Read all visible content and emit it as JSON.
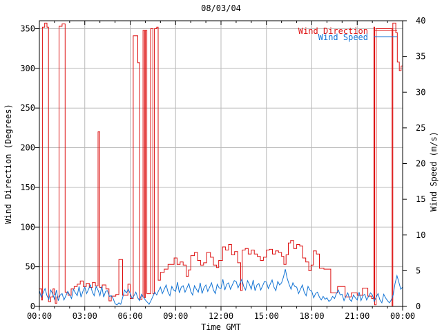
{
  "chart_data": {
    "type": "line",
    "title": "08/03/04",
    "xlabel": "Time GMT",
    "x_range_hours": [
      0,
      24
    ],
    "x_major_step_hours": 3,
    "x_minor_step_hours": 1,
    "x_tick_labels": [
      "00:00",
      "03:00",
      "06:00",
      "09:00",
      "12:00",
      "15:00",
      "18:00",
      "21:00",
      "00:00"
    ],
    "grid": true,
    "grid_color": "#b9b9b9",
    "border_color": "#000000",
    "left_axis": {
      "label": "Wind Direction (Degrees)",
      "range": [
        0,
        360
      ],
      "ticks": [
        0,
        50,
        100,
        150,
        200,
        250,
        300,
        350
      ]
    },
    "right_axis": {
      "label": "Wind Speed (m/s)",
      "range": [
        0,
        40
      ],
      "ticks": [
        0,
        5,
        10,
        15,
        20,
        25,
        30,
        35,
        40
      ]
    },
    "legend": {
      "position": "top-right-inside",
      "entries": [
        {
          "label": "Wind Direction",
          "color": "#dd0f0f",
          "axis": "left"
        },
        {
          "label": "Wind Speed",
          "color": "#1173d4",
          "axis": "right"
        }
      ]
    },
    "series": [
      {
        "name": "Wind Direction",
        "axis": "left",
        "units": "degrees",
        "style": "steps",
        "color": "#dd0f0f",
        "points": [
          [
            0,
            22
          ],
          [
            0.15,
            8
          ],
          [
            0.2,
            352
          ],
          [
            0.35,
            357
          ],
          [
            0.5,
            352
          ],
          [
            0.6,
            6
          ],
          [
            0.75,
            12
          ],
          [
            0.9,
            22
          ],
          [
            1.0,
            15
          ],
          [
            1.05,
            4
          ],
          [
            1.15,
            12
          ],
          [
            1.3,
            353
          ],
          [
            1.5,
            356
          ],
          [
            1.7,
            18
          ],
          [
            1.9,
            14
          ],
          [
            2.1,
            22
          ],
          [
            2.3,
            25
          ],
          [
            2.5,
            28
          ],
          [
            2.7,
            32
          ],
          [
            2.9,
            25
          ],
          [
            3.1,
            29
          ],
          [
            3.3,
            24
          ],
          [
            3.5,
            30
          ],
          [
            3.7,
            26
          ],
          [
            3.88,
            220
          ],
          [
            3.99,
            24
          ],
          [
            4.15,
            27
          ],
          [
            4.4,
            22
          ],
          [
            4.6,
            7
          ],
          [
            4.75,
            13
          ],
          [
            5.05,
            15
          ],
          [
            5.25,
            59
          ],
          [
            5.5,
            14
          ],
          [
            5.7,
            14
          ],
          [
            5.85,
            28
          ],
          [
            6.0,
            10
          ],
          [
            6.2,
            341
          ],
          [
            6.5,
            307
          ],
          [
            6.62,
            9
          ],
          [
            6.78,
            13
          ],
          [
            6.85,
            348
          ],
          [
            6.95,
            11
          ],
          [
            7.0,
            348
          ],
          [
            7.1,
            16
          ],
          [
            7.35,
            350
          ],
          [
            7.5,
            16
          ],
          [
            7.6,
            350
          ],
          [
            7.75,
            352
          ],
          [
            7.85,
            33
          ],
          [
            8.0,
            43
          ],
          [
            8.25,
            47
          ],
          [
            8.5,
            53
          ],
          [
            8.9,
            61
          ],
          [
            9.1,
            53
          ],
          [
            9.3,
            56
          ],
          [
            9.5,
            52
          ],
          [
            9.7,
            38
          ],
          [
            9.85,
            46
          ],
          [
            10.0,
            64
          ],
          [
            10.25,
            68
          ],
          [
            10.45,
            58
          ],
          [
            10.65,
            52
          ],
          [
            10.85,
            55
          ],
          [
            11.05,
            68
          ],
          [
            11.3,
            62
          ],
          [
            11.5,
            52
          ],
          [
            11.7,
            49
          ],
          [
            11.85,
            58
          ],
          [
            12.1,
            75
          ],
          [
            12.3,
            71
          ],
          [
            12.5,
            78
          ],
          [
            12.7,
            65
          ],
          [
            12.9,
            69
          ],
          [
            13.1,
            55
          ],
          [
            13.3,
            20
          ],
          [
            13.4,
            71
          ],
          [
            13.6,
            73
          ],
          [
            13.8,
            66
          ],
          [
            14.0,
            71
          ],
          [
            14.2,
            66
          ],
          [
            14.4,
            63
          ],
          [
            14.6,
            58
          ],
          [
            14.8,
            62
          ],
          [
            15.0,
            71
          ],
          [
            15.2,
            72
          ],
          [
            15.4,
            66
          ],
          [
            15.6,
            70
          ],
          [
            15.8,
            68
          ],
          [
            16.0,
            63
          ],
          [
            16.15,
            53
          ],
          [
            16.3,
            65
          ],
          [
            16.45,
            80
          ],
          [
            16.6,
            83
          ],
          [
            16.8,
            73
          ],
          [
            17.0,
            78
          ],
          [
            17.2,
            76
          ],
          [
            17.4,
            61
          ],
          [
            17.6,
            56
          ],
          [
            17.8,
            45
          ],
          [
            17.95,
            52
          ],
          [
            18.1,
            70
          ],
          [
            18.3,
            66
          ],
          [
            18.5,
            48
          ],
          [
            18.8,
            47
          ],
          [
            19.25,
            17
          ],
          [
            19.7,
            25
          ],
          [
            20.2,
            12
          ],
          [
            20.6,
            17
          ],
          [
            21.0,
            14
          ],
          [
            21.35,
            23
          ],
          [
            21.7,
            13
          ],
          [
            21.95,
            10
          ],
          [
            22.1,
            352
          ],
          [
            22.15,
            2
          ],
          [
            22.25,
            350
          ],
          [
            23.3,
            0
          ],
          [
            23.35,
            357
          ],
          [
            23.55,
            345
          ],
          [
            23.65,
            308
          ],
          [
            23.78,
            297
          ],
          [
            23.9,
            303
          ],
          [
            24,
            303
          ]
        ]
      },
      {
        "name": "Wind Speed",
        "axis": "right",
        "units": "m/s",
        "style": "line",
        "color": "#1173d4",
        "t_start": 0,
        "t_step": 0.125,
        "values": [
          2.2,
          1.3,
          1.9,
          2.5,
          1.5,
          1.0,
          2.3,
          1.8,
          1.0,
          2.3,
          0.8,
          1.6,
          1.8,
          0.9,
          1.5,
          2.1,
          1.6,
          1.1,
          2.4,
          1.9,
          1.5,
          2.8,
          1.3,
          2.1,
          2.7,
          1.8,
          2.4,
          3.0,
          2.0,
          1.5,
          2.8,
          2.3,
          1.5,
          2.8,
          1.3,
          2.1,
          2.2,
          1.4,
          1.5,
          1.1,
          0.4,
          0.2,
          0.5,
          0.3,
          1.2,
          2.3,
          1.9,
          2.4,
          1.8,
          1.1,
          1.5,
          2.0,
          1.2,
          0.8,
          1.7,
          1.3,
          0.9,
          0.6,
          0.3,
          0.8,
          1.4,
          2.0,
          1.6,
          2.2,
          2.7,
          1.8,
          2.4,
          3.0,
          2.0,
          1.5,
          2.8,
          2.3,
          2.1,
          3.4,
          1.9,
          2.7,
          2.9,
          2.0,
          2.6,
          3.2,
          2.1,
          1.6,
          2.9,
          2.4,
          2.0,
          3.3,
          1.8,
          2.6,
          3.0,
          2.1,
          2.7,
          3.3,
          2.3,
          1.8,
          3.1,
          2.6,
          2.5,
          3.8,
          2.3,
          3.1,
          3.3,
          2.4,
          3.0,
          3.6,
          3.5,
          2.6,
          3.2,
          3.8,
          2.8,
          2.3,
          3.6,
          3.1,
          2.4,
          3.7,
          2.2,
          3.0,
          3.2,
          2.3,
          2.9,
          3.5,
          3.4,
          2.5,
          3.1,
          3.7,
          2.7,
          2.2,
          3.5,
          3.0,
          3.3,
          4.1,
          5.2,
          3.9,
          3.1,
          2.4,
          3.3,
          2.8,
          2.7,
          1.8,
          2.4,
          3.0,
          2.0,
          1.5,
          2.8,
          2.3,
          2.1,
          1.2,
          1.8,
          2.0,
          1.3,
          0.9,
          1.4,
          1.0,
          1.2,
          0.7,
          0.9,
          1.4,
          1.1,
          1.8,
          2.3,
          1.6,
          1.7,
          0.8,
          1.4,
          1.9,
          1.0,
          0.7,
          1.6,
          1.2,
          0.9,
          2.0,
          0.8,
          1.5,
          1.7,
          0.9,
          1.4,
          1.9,
          1.6,
          0.7,
          1.3,
          1.8,
          0.9,
          0.5,
          1.7,
          1.2,
          0.8,
          0.5,
          0.9,
          1.6,
          3.2,
          4.3,
          3.4,
          2.4,
          2.7
        ]
      }
    ]
  }
}
